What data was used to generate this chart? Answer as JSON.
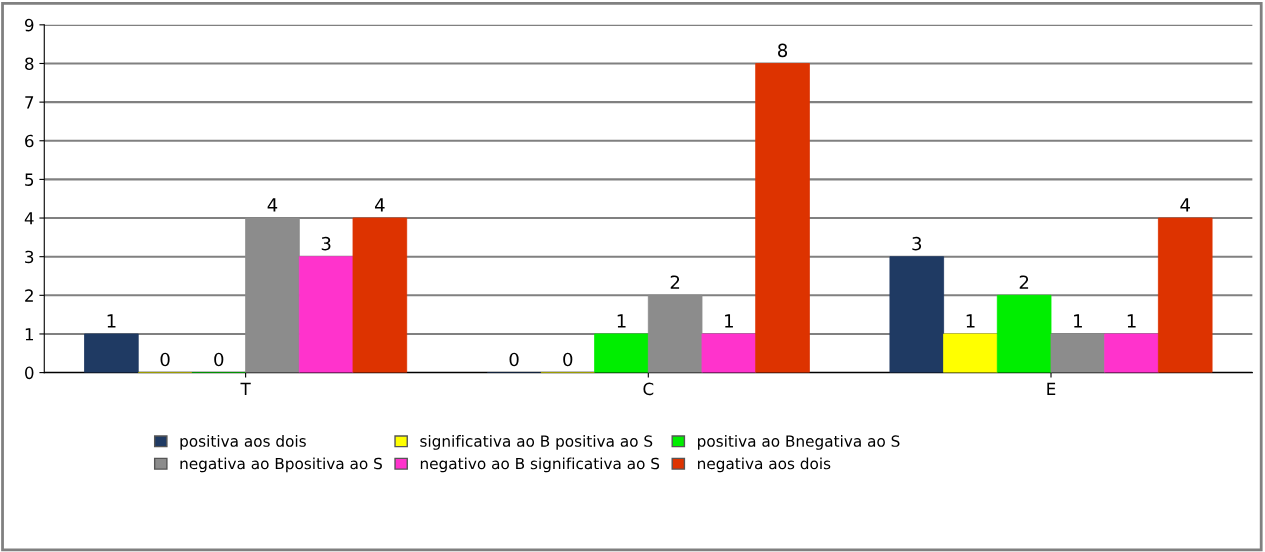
{
  "chart_data": {
    "type": "bar",
    "categories": [
      "T",
      "C",
      "E"
    ],
    "series": [
      {
        "name": "positiva aos dois",
        "color": "#1f3a63",
        "values": [
          1,
          0,
          3
        ]
      },
      {
        "name": "significativa ao B positiva ao S",
        "color": "#ffff00",
        "values": [
          0,
          0,
          1
        ]
      },
      {
        "name": "positiva ao Bnegativa ao S",
        "color": "#00ee00",
        "values": [
          0,
          1,
          2
        ]
      },
      {
        "name": "negativa ao Bpositiva ao S",
        "color": "#8c8c8c",
        "values": [
          4,
          2,
          1
        ]
      },
      {
        "name": "negativo ao B significativa ao S",
        "color": "#ff33cc",
        "values": [
          3,
          1,
          1
        ]
      },
      {
        "name": "negativa aos dois",
        "color": "#dd3300",
        "values": [
          4,
          8,
          4
        ]
      }
    ],
    "ylim": [
      0,
      9
    ],
    "yticks": [
      0,
      1,
      2,
      3,
      4,
      5,
      6,
      7,
      8,
      9
    ],
    "grid": "y",
    "legend": "bottom",
    "data_labels": true
  }
}
